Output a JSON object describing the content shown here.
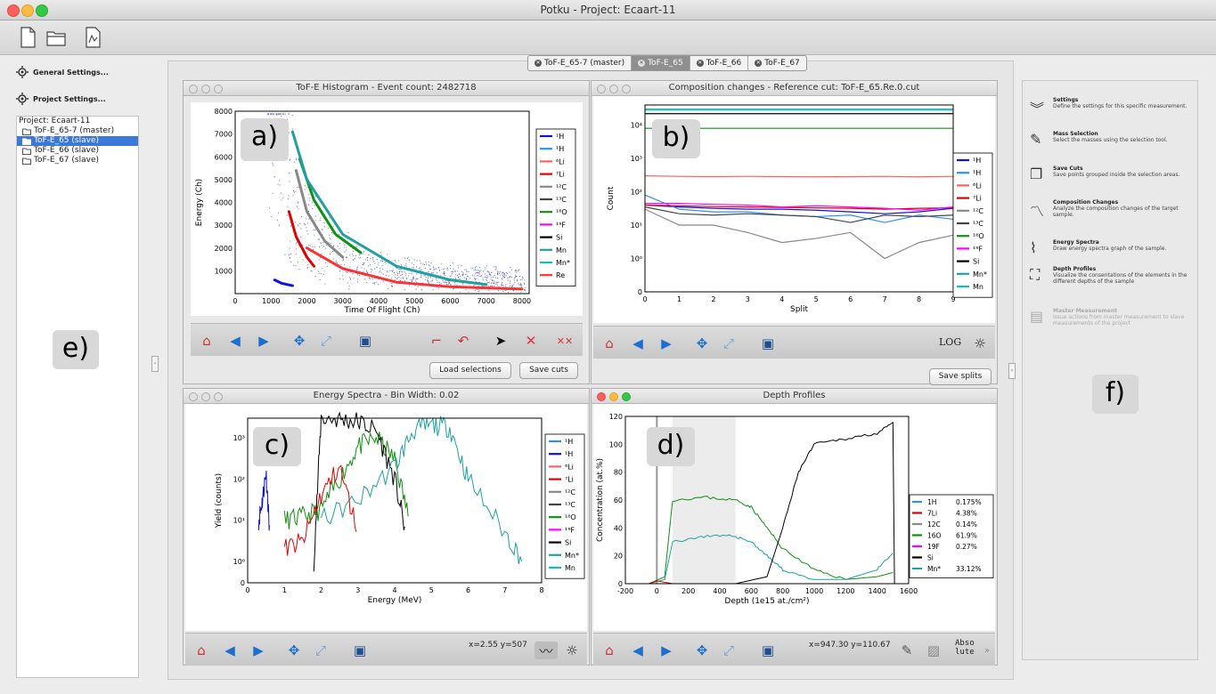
{
  "window": {
    "title": "Potku - Project: Ecaart-11"
  },
  "left": {
    "general_settings": "General Settings...",
    "project_settings": "Project Settings...",
    "tree": {
      "root": "Project: Ecaart-11",
      "items": [
        {
          "label": "ToF-E_65-7 (master)",
          "selected": false
        },
        {
          "label": "ToF-E_65 (slave)",
          "selected": true
        },
        {
          "label": "ToF-E_66 (slave)",
          "selected": false
        },
        {
          "label": "ToF-E_67 (slave)",
          "selected": false
        }
      ]
    },
    "badge": "e)"
  },
  "tabs": [
    {
      "label": "ToF-E_65-7 (master)",
      "active": false
    },
    {
      "label": "ToF-E_65",
      "active": true
    },
    {
      "label": "ToF-E_66",
      "active": false
    },
    {
      "label": "ToF-E_67",
      "active": false
    }
  ],
  "panels": {
    "a": {
      "title": "ToF-E Histogram - Event count: 2482718",
      "badge": "a)",
      "load_selections": "Load selections",
      "save_cuts": "Save cuts"
    },
    "b": {
      "title": "Composition changes - Reference cut: ToF-E_65.Re.0.cut",
      "badge": "b)",
      "log_label": "LOG",
      "save_splits": "Save splits"
    },
    "c": {
      "title": "Energy Spectra - Bin Width: 0.02",
      "badge": "c)",
      "coords": "x=2.55 y=507"
    },
    "d": {
      "title": "Depth Profiles",
      "badge": "d)",
      "coords": "x=947.30 y=110.67",
      "abs_label_1": "Abso",
      "abs_label_2": "lute"
    }
  },
  "right": {
    "badge": "f)",
    "items": [
      {
        "title": "Settings",
        "desc": "Define the settings for this specific measurement.",
        "icon": "chevrons-down-icon",
        "enabled": true
      },
      {
        "title": "Mass Selection",
        "desc": "Select the masses using the selection tool.",
        "icon": "pencil-icon",
        "enabled": true
      },
      {
        "title": "Save Cuts",
        "desc": "Save points grouped inside the selection areas.",
        "icon": "save-cuts-icon",
        "enabled": true
      },
      {
        "title": "Composition Changes",
        "desc": "Analyze the composition changes of the target sample.",
        "icon": "composition-icon",
        "enabled": true
      },
      {
        "title": "Energy Spectra",
        "desc": "Draw energy spectra graph of the sample.",
        "icon": "energy-spectra-icon",
        "enabled": true
      },
      {
        "title": "Depth Profiles",
        "desc": "Visualize the consentations of the elements in the different depths of the sample",
        "icon": "depth-profiles-icon",
        "enabled": true
      },
      {
        "title": "Master Measurement",
        "desc": "Issue actions from master measurement to slave measurements of the project",
        "icon": "master-icon",
        "enabled": false
      }
    ]
  },
  "chart_data": [
    {
      "type": "scatter",
      "xlabel": "Time Of Flight (Ch)",
      "ylabel": "Energy (Ch)",
      "xlim": [
        0,
        8200
      ],
      "ylim": [
        0,
        8000
      ],
      "xticks": [
        "0",
        "1000",
        "2000",
        "3000",
        "4000",
        "5000",
        "6000",
        "7000",
        "8000"
      ],
      "yticks": [
        "1000",
        "2000",
        "3000",
        "4000",
        "5000",
        "6000",
        "7000",
        "8000"
      ],
      "legend_placement": "right",
      "legend": [
        {
          "label": "¹H",
          "color": "#1010e0"
        },
        {
          "label": "¹H",
          "color": "#2a90ff"
        },
        {
          "label": "⁶Li",
          "color": "#ff6060"
        },
        {
          "label": "⁷Li",
          "color": "#e00000"
        },
        {
          "label": "¹²C",
          "color": "#888888"
        },
        {
          "label": "¹³C",
          "color": "#444444"
        },
        {
          "label": "¹⁶O",
          "color": "#109010"
        },
        {
          "label": "¹⁹F",
          "color": "#ff00ff"
        },
        {
          "label": "Si",
          "color": "#000000"
        },
        {
          "label": "Mn",
          "color": "#20a0a0"
        },
        {
          "label": "Mn*",
          "color": "#10c0b0"
        },
        {
          "label": "Re",
          "color": "#ff3030"
        }
      ],
      "series": [
        {
          "name": "¹H",
          "x": [
            1100,
            1300,
            1600
          ],
          "y": [
            600,
            450,
            350
          ]
        },
        {
          "name": "⁷Li",
          "x": [
            1500,
            1700,
            2000,
            2200
          ],
          "y": [
            3600,
            2500,
            1600,
            1200
          ]
        },
        {
          "name": "¹²C",
          "x": [
            1700,
            2000,
            2500,
            3000
          ],
          "y": [
            5400,
            3600,
            2300,
            1600
          ]
        },
        {
          "name": "¹⁶O",
          "x": [
            1800,
            2200,
            2800,
            3500
          ],
          "y": [
            5900,
            4100,
            2600,
            1800
          ]
        },
        {
          "name": "Mn",
          "x": [
            1600,
            2000,
            3000,
            4500,
            6000,
            7000
          ],
          "y": [
            7100,
            5000,
            2600,
            1200,
            600,
            400
          ]
        },
        {
          "name": "Re",
          "x": [
            2000,
            3000,
            4500,
            6000,
            8000
          ],
          "y": [
            2000,
            1100,
            500,
            300,
            200
          ]
        }
      ]
    },
    {
      "type": "line",
      "xlabel": "Split",
      "ylabel": "Count",
      "yscale": "log",
      "xlim": [
        0,
        9
      ],
      "ylim": [
        0.1,
        40000
      ],
      "xticks": [
        "0",
        "1",
        "2",
        "3",
        "4",
        "5",
        "6",
        "7",
        "8",
        "9"
      ],
      "yticks": [
        "0",
        "10⁰",
        "10¹",
        "10²",
        "10³",
        "10⁴"
      ],
      "legend_placement": "right",
      "x": [
        0,
        1,
        2,
        3,
        4,
        5,
        6,
        7,
        8,
        9
      ],
      "series": [
        {
          "name": "¹H",
          "color": "#1010e0",
          "values": [
            40,
            35,
            32,
            30,
            30,
            28,
            25,
            22,
            25,
            32
          ]
        },
        {
          "name": "¹H",
          "color": "#2a90ff",
          "values": [
            80,
            30,
            25,
            25,
            20,
            18,
            20,
            12,
            20,
            15
          ]
        },
        {
          "name": "⁶Li",
          "color": "#ff6060",
          "values": [
            300,
            290,
            285,
            290,
            285,
            280,
            285,
            290,
            280,
            290
          ]
        },
        {
          "name": "⁷Li",
          "color": "#e00000",
          "values": [
            40,
            38,
            36,
            35,
            34,
            33,
            32,
            30,
            32,
            33
          ]
        },
        {
          "name": "¹²C",
          "color": "#888888",
          "values": [
            30,
            10,
            10,
            6,
            3,
            4,
            6,
            1,
            3,
            5
          ]
        },
        {
          "name": "¹³C",
          "color": "#444444",
          "values": [
            35,
            22,
            20,
            22,
            20,
            18,
            12,
            20,
            18,
            20
          ]
        },
        {
          "name": "¹⁶O",
          "color": "#109010",
          "values": [
            8000,
            8000,
            8000,
            8000,
            8000,
            8000,
            8000,
            8000,
            8000,
            8000
          ]
        },
        {
          "name": "¹⁹F",
          "color": "#ff00ff",
          "values": [
            45,
            45,
            42,
            40,
            35,
            38,
            35,
            32,
            28,
            35
          ]
        },
        {
          "name": "Si",
          "color": "#000000",
          "values": [
            22000,
            22000,
            22000,
            22000,
            22000,
            22000,
            22000,
            22000,
            22000,
            22000
          ]
        },
        {
          "name": "Mn*",
          "color": "#20a0a0",
          "values": [
            30000,
            30000,
            30000,
            30000,
            30000,
            30000,
            30000,
            30000,
            30000,
            30000
          ]
        },
        {
          "name": "Mn",
          "color": "#10c0b0",
          "values": [
            28000,
            28000,
            28000,
            28000,
            28000,
            28000,
            28000,
            28000,
            28000,
            28000
          ]
        }
      ]
    },
    {
      "type": "line",
      "xlabel": "Energy (MeV)",
      "ylabel": "Yield (counts)",
      "yscale": "log",
      "xlim": [
        0,
        8
      ],
      "ylim": [
        0.3,
        3000
      ],
      "xticks": [
        "0",
        "1",
        "2",
        "3",
        "4",
        "5",
        "6",
        "7",
        "8"
      ],
      "yticks": [
        "0",
        "10⁰",
        "10¹",
        "10²",
        "10³"
      ],
      "legend_placement": "right",
      "legend": [
        {
          "label": "¹H",
          "color": "#2a90ff"
        },
        {
          "label": "¹H",
          "color": "#1010e0"
        },
        {
          "label": "⁶Li",
          "color": "#ff6060"
        },
        {
          "label": "⁷Li",
          "color": "#e00000"
        },
        {
          "label": "¹²C",
          "color": "#888888"
        },
        {
          "label": "¹³C",
          "color": "#444444"
        },
        {
          "label": "¹⁶O",
          "color": "#109010"
        },
        {
          "label": "¹⁹F",
          "color": "#ff00ff"
        },
        {
          "label": "Si",
          "color": "#000000"
        },
        {
          "label": "Mn*",
          "color": "#20a0a0"
        },
        {
          "label": "Mn",
          "color": "#10c0b0"
        }
      ],
      "series": [
        {
          "name": "¹H",
          "x": [
            0.3,
            0.4,
            0.5,
            0.6
          ],
          "y": [
            10,
            30,
            150,
            5
          ]
        },
        {
          "name": "¹⁶O",
          "x": [
            1.0,
            1.5,
            2.0,
            2.5,
            3.0,
            3.5,
            4.0,
            4.4
          ],
          "y": [
            10,
            12,
            18,
            100,
            600,
            1000,
            300,
            10
          ]
        },
        {
          "name": "Si",
          "x": [
            1.8,
            2.0,
            2.5,
            3.0,
            3.5,
            4.0,
            4.3
          ],
          "y": [
            1,
            3000,
            2800,
            2500,
            1500,
            100,
            5
          ]
        },
        {
          "name": "Mn",
          "x": [
            2.0,
            3.0,
            4.0,
            4.5,
            5.0,
            5.5,
            6.0,
            7.0,
            7.5
          ],
          "y": [
            10,
            30,
            200,
            1500,
            2000,
            1800,
            100,
            5,
            1
          ]
        },
        {
          "name": "⁷Li",
          "x": [
            1.0,
            1.5,
            2.0,
            2.5,
            3.0
          ],
          "y": [
            2,
            3,
            40,
            200,
            5
          ]
        }
      ]
    },
    {
      "type": "line",
      "xlabel": "Depth (1e15 at./cm²)",
      "ylabel": "Concentration (at.%)",
      "xlim": [
        -200,
        1600
      ],
      "ylim": [
        0,
        120
      ],
      "xticks": [
        "-200",
        "0",
        "200",
        "400",
        "600",
        "800",
        "1000",
        "1200",
        "1400",
        "1600"
      ],
      "yticks": [
        "0",
        "20",
        "40",
        "60",
        "80",
        "100",
        "120"
      ],
      "shaded_range": [
        100,
        500
      ],
      "legend_placement": "bottom-right",
      "legend": [
        {
          "label": "1H",
          "value": "0.175%",
          "color": "#2a90ff"
        },
        {
          "label": "7Li",
          "value": "4.38%",
          "color": "#e00000"
        },
        {
          "label": "12C",
          "value": "0.14%",
          "color": "#888888"
        },
        {
          "label": "16O",
          "value": "61.9%",
          "color": "#109010"
        },
        {
          "label": "19F",
          "value": "0.27%",
          "color": "#ff00ff"
        },
        {
          "label": "Si",
          "value": "",
          "color": "#000000"
        },
        {
          "label": "Mn*",
          "value": "33.12%",
          "color": "#20a0a0"
        }
      ],
      "series": [
        {
          "name": "16O",
          "x": [
            -50,
            50,
            100,
            300,
            500,
            600,
            700,
            800,
            1000,
            1200,
            1400,
            1500
          ],
          "y": [
            0,
            5,
            60,
            62,
            60,
            55,
            40,
            25,
            10,
            3,
            5,
            8
          ]
        },
        {
          "name": "Mn*",
          "x": [
            -50,
            50,
            100,
            300,
            500,
            600,
            700,
            800,
            1000,
            1200,
            1400,
            1500
          ],
          "y": [
            0,
            3,
            30,
            34,
            34,
            30,
            20,
            10,
            3,
            3,
            10,
            22
          ]
        },
        {
          "name": "Si",
          "x": [
            500,
            700,
            800,
            900,
            1000,
            1200,
            1400,
            1500,
            1510
          ],
          "y": [
            0,
            5,
            40,
            80,
            100,
            104,
            108,
            115,
            0
          ]
        },
        {
          "name": "7Li",
          "x": [
            -50,
            0,
            50,
            100,
            500,
            1500
          ],
          "y": [
            0,
            2,
            1,
            0,
            0,
            0
          ]
        }
      ]
    }
  ]
}
